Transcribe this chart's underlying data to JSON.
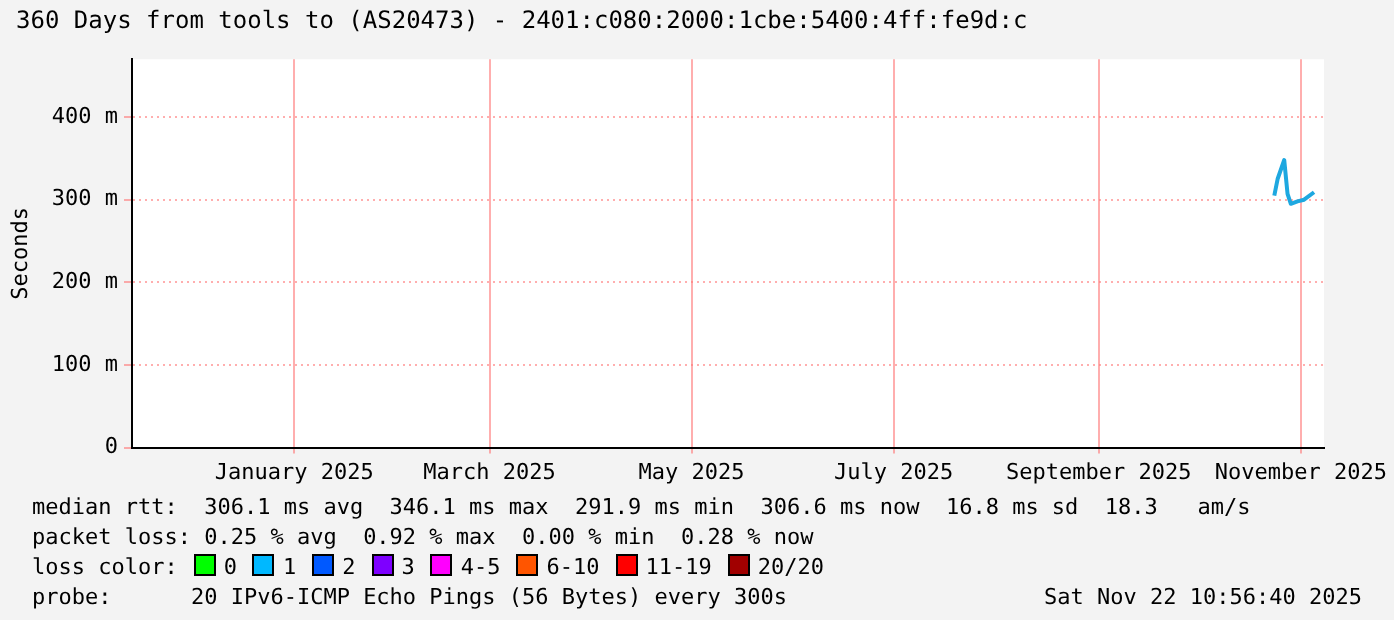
{
  "chart_data": {
    "type": "line",
    "title": "360 Days from tools to (AS20473) - 2401:c080:2000:1cbe:5400:4ff:fe9d:c",
    "ylabel": "Seconds",
    "x": [
      "2025-11-07",
      "2025-11-08",
      "2025-11-10",
      "2025-11-11",
      "2025-11-12",
      "2025-11-14",
      "2025-11-16",
      "2025-11-19"
    ],
    "series": [
      {
        "color": "#1ea8e0",
        "values": [
          305,
          325,
          348,
          307,
          295,
          298,
          300,
          309
        ]
      }
    ],
    "xlim": [
      "2024-11-27",
      "2025-11-22"
    ],
    "xticks": [
      {
        "value": "2025-01-15",
        "label": "January 2025"
      },
      {
        "value": "2025-03-15",
        "label": "March 2025"
      },
      {
        "value": "2025-05-15",
        "label": "May 2025"
      },
      {
        "value": "2025-07-15",
        "label": "July 2025"
      },
      {
        "value": "2025-09-15",
        "label": "September 2025"
      },
      {
        "value": "2025-11-15",
        "label": "November 2025"
      }
    ],
    "ylim": [
      0,
      470
    ],
    "yticks": [
      0,
      {
        "value": 100,
        "label": "100 m"
      },
      {
        "value": 200,
        "label": "200 m"
      },
      {
        "value": 300,
        "label": "300 m"
      },
      {
        "value": 400,
        "label": "400 m"
      }
    ],
    "grid": true,
    "legend": false,
    "marker": "none",
    "line_style": "solid",
    "annotations": [
      "median rtt:  306.1 ms avg  346.1 ms max  291.9 ms min  306.6 ms now  16.8 ms sd  18.3   am/s",
      "packet loss: 0.25 % avg  0.92 % max  0.00 % min  0.28 % now",
      "loss color:",
      "0",
      "1",
      "2",
      "3",
      "4-5",
      "6-10",
      "11-19",
      "20/20",
      "probe:      20 IPv6-ICMP Echo Pings (56 Bytes) every 300s",
      "Sat Nov 22 10:56:40 2025"
    ]
  }
}
